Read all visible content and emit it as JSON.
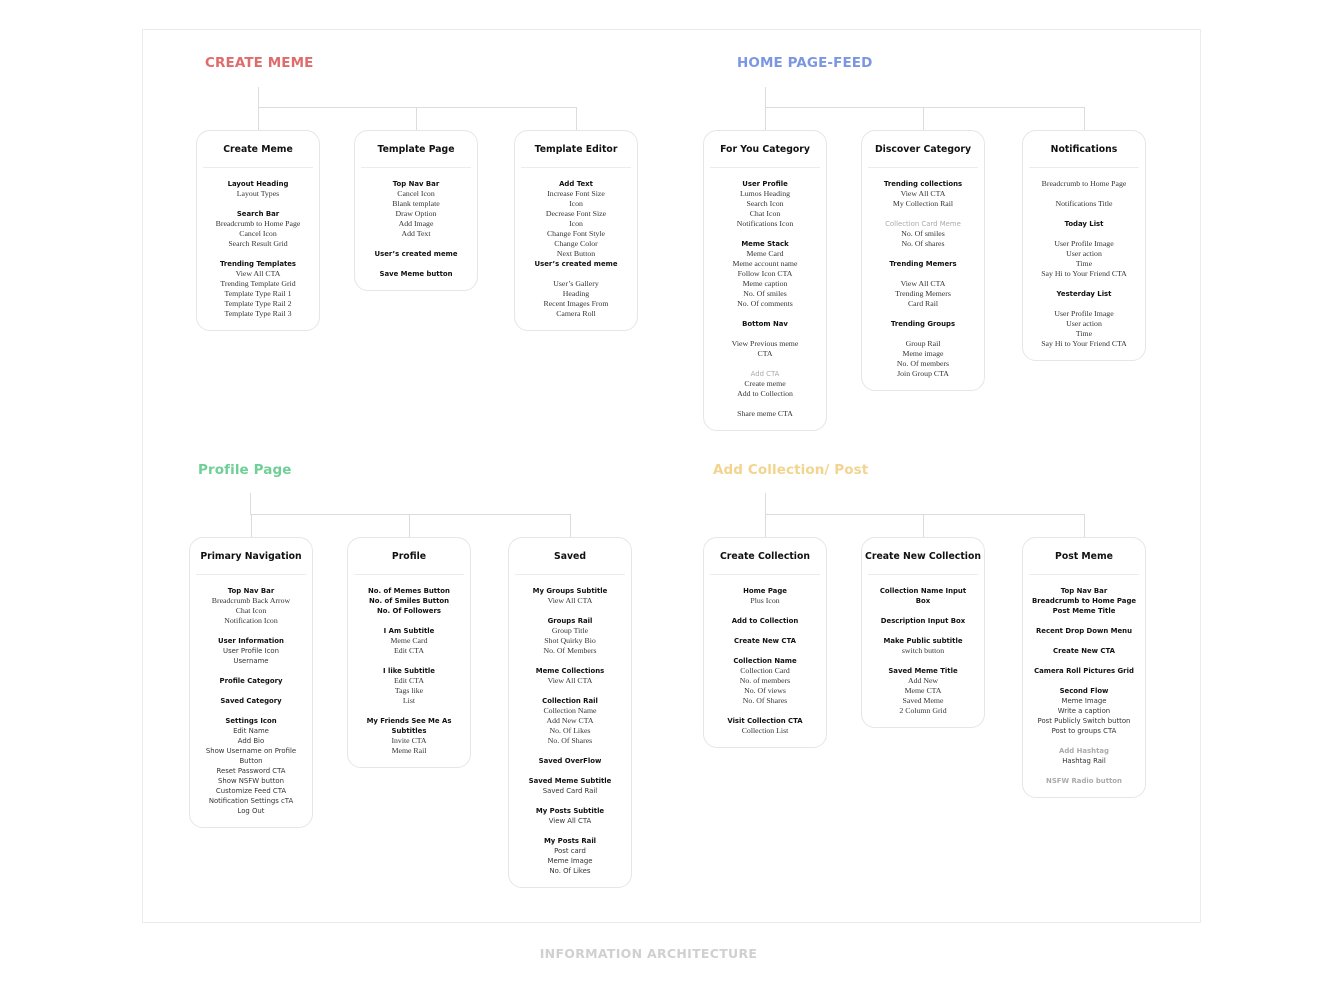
{
  "footer": "INFORMATION ARCHITECTURE",
  "sections": [
    {
      "title": "CREATE MEME",
      "color": "#e06b6b",
      "cards": [
        {
          "title": "Create Meme",
          "groups": [
            [
              {
                "t": "Layout Heading",
                "s": "b"
              },
              {
                "t": "Layout Types",
                "s": "n"
              }
            ],
            [
              {
                "t": "Search Bar",
                "s": "b"
              },
              {
                "t": "Breadcrumb to Home Page",
                "s": "n"
              },
              {
                "t": "Cancel Icon",
                "s": "n"
              },
              {
                "t": "Search Result Grid",
                "s": "n"
              }
            ],
            [
              {
                "t": "Trending Templates",
                "s": "b"
              },
              {
                "t": "View All CTA",
                "s": "n"
              },
              {
                "t": "Trending Template Grid",
                "s": "n"
              },
              {
                "t": "Template Type Rail 1",
                "s": "n"
              },
              {
                "t": "Template Type Rail 2",
                "s": "n"
              },
              {
                "t": "Template Type Rail 3",
                "s": "n"
              }
            ]
          ]
        },
        {
          "title": "Template Page",
          "groups": [
            [
              {
                "t": "Top Nav Bar",
                "s": "b"
              },
              {
                "t": "Cancel Icon",
                "s": "n"
              },
              {
                "t": "Blank template",
                "s": "n"
              },
              {
                "t": "Draw Option",
                "s": "n"
              },
              {
                "t": "Add Image",
                "s": "n"
              },
              {
                "t": "Add Text",
                "s": "n"
              }
            ],
            [
              {
                "t": "User’s created meme",
                "s": "b"
              }
            ],
            [
              {
                "t": "Save Meme button",
                "s": "b"
              }
            ]
          ]
        },
        {
          "title": "Template Editor",
          "groups": [
            [
              {
                "t": "Add Text",
                "s": "b"
              },
              {
                "t": "Increase Font Size",
                "s": "n"
              },
              {
                "t": "Icon",
                "s": "n"
              },
              {
                "t": "Decrease Font Size",
                "s": "n"
              },
              {
                "t": "Icon",
                "s": "n"
              },
              {
                "t": "Change Font Style",
                "s": "n"
              },
              {
                "t": "Change Color",
                "s": "n"
              },
              {
                "t": "Next Button",
                "s": "n"
              },
              {
                "t": "User’s created meme",
                "s": "b"
              }
            ],
            [
              {
                "t": "User’s Gallery",
                "s": "n"
              },
              {
                "t": "Heading",
                "s": "n"
              },
              {
                "t": "Recent Images From",
                "s": "n"
              },
              {
                "t": "Camera Roll",
                "s": "n"
              }
            ]
          ]
        }
      ]
    },
    {
      "title": "HOME PAGE-FEED",
      "color": "#7b97e3",
      "cards": [
        {
          "title": "For You Category",
          "groups": [
            [
              {
                "t": "User Profile",
                "s": "b"
              },
              {
                "t": "Lumos Heading",
                "s": "n"
              },
              {
                "t": "Search Icon",
                "s": "n"
              },
              {
                "t": "Chat Icon",
                "s": "n"
              },
              {
                "t": "Notifications Icon",
                "s": "n"
              }
            ],
            [
              {
                "t": "",
                "s": "n"
              }
            ],
            [
              {
                "t": "Meme Stack",
                "s": "b"
              },
              {
                "t": "Meme Card",
                "s": "n"
              },
              {
                "t": "Meme account name",
                "s": "n"
              },
              {
                "t": "Follow Icon CTA",
                "s": "n"
              },
              {
                "t": "Meme caption",
                "s": "n"
              },
              {
                "t": "No. Of smiles",
                "s": "n"
              },
              {
                "t": "No. Of comments",
                "s": "n"
              }
            ],
            [
              {
                "t": "Bottom Nav",
                "s": "b"
              }
            ],
            [
              {
                "t": "View Previous meme",
                "s": "n"
              },
              {
                "t": "CTA",
                "s": "n"
              }
            ],
            [
              {
                "t": "Add CTA",
                "s": "mr"
              },
              {
                "t": "Create meme",
                "s": "n"
              },
              {
                "t": "Add to Collection",
                "s": "n"
              }
            ],
            [
              {
                "t": "Share meme CTA",
                "s": "n"
              }
            ]
          ]
        },
        {
          "title": "Discover Category",
          "groups": [
            [
              {
                "t": "Trending collections",
                "s": "b"
              },
              {
                "t": "View All CTA",
                "s": "n"
              },
              {
                "t": "My Collection Rail",
                "s": "n"
              }
            ],
            [
              {
                "t": "Collection Card Meme",
                "s": "mr"
              },
              {
                "t": "No. Of smiles",
                "s": "n"
              },
              {
                "t": "No. Of shares",
                "s": "n"
              }
            ],
            [
              {
                "t": "Trending Memers",
                "s": "b"
              }
            ],
            [
              {
                "t": "View All CTA",
                "s": "n"
              },
              {
                "t": "Trending Memers",
                "s": "n"
              },
              {
                "t": "Card Rail",
                "s": "n"
              }
            ],
            [
              {
                "t": "Trending Groups",
                "s": "b"
              }
            ],
            [
              {
                "t": "Group Rail",
                "s": "n"
              },
              {
                "t": "Meme image",
                "s": "n"
              },
              {
                "t": "No. Of members",
                "s": "n"
              },
              {
                "t": "Join Group CTA",
                "s": "n"
              }
            ]
          ]
        },
        {
          "title": "Notifications",
          "groups": [
            [
              {
                "t": "Breadcrumb to Home Page",
                "s": "n"
              }
            ],
            [
              {
                "t": "Notifications Title",
                "s": "n"
              }
            ],
            [
              {
                "t": "Today List",
                "s": "b"
              }
            ],
            [
              {
                "t": "User Profile Image",
                "s": "n"
              },
              {
                "t": "User action",
                "s": "n"
              },
              {
                "t": "Time",
                "s": "n"
              },
              {
                "t": "Say Hi to Your Friend CTA",
                "s": "n"
              }
            ],
            [
              {
                "t": "Yesterday List",
                "s": "b"
              }
            ],
            [
              {
                "t": "User Profile Image",
                "s": "n"
              },
              {
                "t": "User action",
                "s": "n"
              },
              {
                "t": "Time",
                "s": "n"
              },
              {
                "t": "Say Hi to Your Friend CTA",
                "s": "n"
              }
            ]
          ]
        }
      ]
    },
    {
      "title": "Profile Page",
      "color": "#6fcf96",
      "cards": [
        {
          "title": "Primary Navigation",
          "groups": [
            [
              {
                "t": "Top Nav Bar",
                "s": "b"
              },
              {
                "t": "Breadcrumb Back Arrow",
                "s": "n"
              },
              {
                "t": "Chat Icon",
                "s": "n"
              },
              {
                "t": "Notification Icon",
                "s": "n"
              }
            ],
            [
              {
                "t": "User Information",
                "s": "b"
              },
              {
                "t": "User Profile Icon",
                "s": "s"
              },
              {
                "t": "Username",
                "s": "s"
              }
            ],
            [
              {
                "t": "Profile Category",
                "s": "b"
              }
            ],
            [
              {
                "t": "Saved Category",
                "s": "b"
              }
            ],
            [
              {
                "t": "Settings Icon",
                "s": "b"
              },
              {
                "t": "Edit Name",
                "s": "s"
              },
              {
                "t": "Add Bio",
                "s": "s"
              },
              {
                "t": "Show Username on Profile",
                "s": "s"
              },
              {
                "t": "Button",
                "s": "s"
              },
              {
                "t": "Reset Password CTA",
                "s": "s"
              },
              {
                "t": "Show NSFW button",
                "s": "s"
              },
              {
                "t": "Customize Feed CTA",
                "s": "s"
              },
              {
                "t": "Notification Settings cTA",
                "s": "s"
              },
              {
                "t": "Log Out",
                "s": "s"
              }
            ]
          ]
        },
        {
          "title": "Profile",
          "groups": [
            [
              {
                "t": "No. of Memes Button",
                "s": "b"
              },
              {
                "t": "No. of Smiles Button",
                "s": "b"
              },
              {
                "t": "No. Of Followers",
                "s": "b"
              }
            ],
            [
              {
                "t": "I Am Subtitle",
                "s": "b"
              },
              {
                "t": "Meme Card",
                "s": "n"
              },
              {
                "t": "Edit CTA",
                "s": "n"
              }
            ],
            [
              {
                "t": "I like Subtitle",
                "s": "b"
              },
              {
                "t": "Edit CTA",
                "s": "n"
              },
              {
                "t": "Tags like",
                "s": "n"
              },
              {
                "t": "List",
                "s": "n"
              }
            ],
            [
              {
                "t": "My Friends See Me As",
                "s": "b"
              },
              {
                "t": "Subtitles",
                "s": "b"
              },
              {
                "t": "Invite CTA",
                "s": "n"
              },
              {
                "t": "Meme Rail",
                "s": "n"
              }
            ]
          ]
        },
        {
          "title": "Saved",
          "groups": [
            [
              {
                "t": "My Groups Subtitle",
                "s": "b"
              },
              {
                "t": "View All CTA",
                "s": "n"
              }
            ],
            [
              {
                "t": "Groups Rail",
                "s": "b"
              },
              {
                "t": "Group Title",
                "s": "n"
              },
              {
                "t": "Shot Quirky Bio",
                "s": "n"
              },
              {
                "t": "No. Of Members",
                "s": "n"
              }
            ],
            [
              {
                "t": "Meme Collections",
                "s": "b"
              },
              {
                "t": "View All CTA",
                "s": "n"
              }
            ],
            [
              {
                "t": "Collection Rail",
                "s": "b"
              },
              {
                "t": "Collection Name",
                "s": "n"
              },
              {
                "t": "Add New CTA",
                "s": "n"
              },
              {
                "t": "No. Of Likes",
                "s": "n"
              },
              {
                "t": "No. Of Shares",
                "s": "n"
              }
            ],
            [
              {
                "t": "Saved OverFlow",
                "s": "b"
              }
            ],
            [
              {
                "t": "Saved Meme Subtitle",
                "s": "b"
              },
              {
                "t": "Saved Card Rail",
                "s": "s"
              }
            ],
            [
              {
                "t": "My Posts Subtitle",
                "s": "b"
              },
              {
                "t": "View All CTA",
                "s": "s"
              }
            ],
            [
              {
                "t": "My Posts Rail",
                "s": "b"
              },
              {
                "t": "Post card",
                "s": "s"
              },
              {
                "t": "Meme Image",
                "s": "s"
              },
              {
                "t": "No. Of Likes",
                "s": "s"
              }
            ]
          ]
        }
      ]
    },
    {
      "title": "Add Collection/ Post",
      "color": "#f2d48e",
      "cards": [
        {
          "title": "Create Collection",
          "groups": [
            [
              {
                "t": "Home Page",
                "s": "b"
              },
              {
                "t": "Plus Icon",
                "s": "n"
              }
            ],
            [
              {
                "t": "Add to Collection",
                "s": "b"
              }
            ],
            [
              {
                "t": "Create New CTA",
                "s": "b"
              }
            ],
            [
              {
                "t": "Collection Name",
                "s": "b"
              },
              {
                "t": "Collection Card",
                "s": "n"
              },
              {
                "t": "No. of members",
                "s": "n"
              },
              {
                "t": "No. Of views",
                "s": "n"
              },
              {
                "t": "No. Of Shares",
                "s": "n"
              }
            ],
            [
              {
                "t": "Visit Collection CTA",
                "s": "b"
              },
              {
                "t": "Collection List",
                "s": "n"
              }
            ]
          ]
        },
        {
          "title": "Create New Collection",
          "groups": [
            [
              {
                "t": "Collection Name Input",
                "s": "b"
              },
              {
                "t": "Box",
                "s": "b"
              }
            ],
            [
              {
                "t": "Description Input Box",
                "s": "b"
              }
            ],
            [
              {
                "t": "Make Public subtitle",
                "s": "b"
              },
              {
                "t": "switch button",
                "s": "n"
              }
            ],
            [
              {
                "t": "Saved Meme Title",
                "s": "b"
              },
              {
                "t": "Add New",
                "s": "n"
              },
              {
                "t": "Meme CTA",
                "s": "n"
              },
              {
                "t": "Saved Meme",
                "s": "n"
              },
              {
                "t": "2 Column Grid",
                "s": "n"
              }
            ]
          ]
        },
        {
          "title": "Post Meme",
          "groups": [
            [
              {
                "t": "Top Nav Bar",
                "s": "b"
              },
              {
                "t": "Breadcrumb to Home Page",
                "s": "b"
              },
              {
                "t": "Post Meme Title",
                "s": "b"
              }
            ],
            [
              {
                "t": "Recent Drop Down Menu",
                "s": "b"
              }
            ],
            [
              {
                "t": "Create New CTA",
                "s": "b"
              }
            ],
            [
              {
                "t": "Camera Roll Pictures Grid",
                "s": "b"
              }
            ],
            [
              {
                "t": "Second Flow",
                "s": "b"
              },
              {
                "t": "Meme Image",
                "s": "s"
              },
              {
                "t": "Write a caption",
                "s": "s"
              },
              {
                "t": "Post Publicly Switch button",
                "s": "s"
              },
              {
                "t": "Post to groups CTA",
                "s": "s"
              }
            ],
            [
              {
                "t": "Add Hashtag",
                "s": "m"
              },
              {
                "t": "Hashtag Rail",
                "s": "s"
              }
            ],
            [
              {
                "t": "NSFW Radio button",
                "s": "m"
              }
            ]
          ]
        }
      ]
    }
  ]
}
